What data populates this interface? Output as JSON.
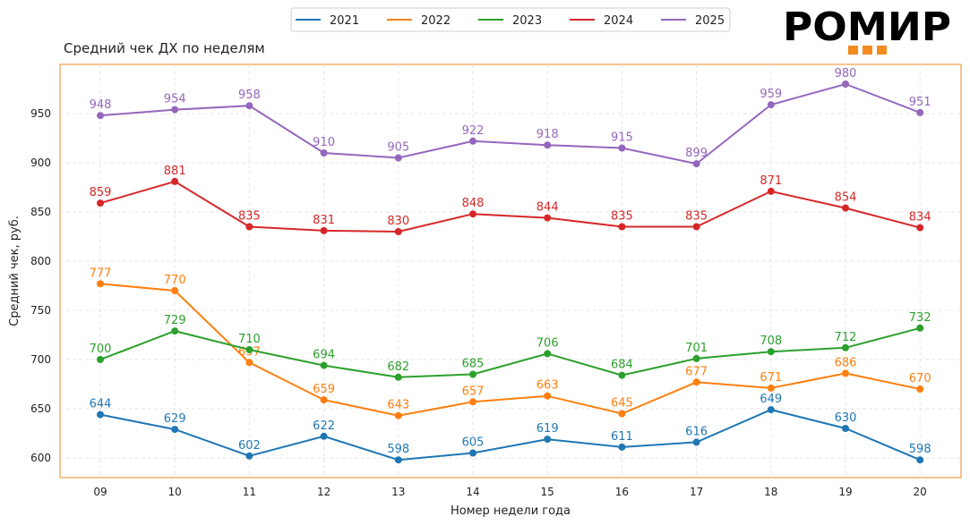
{
  "brand": {
    "name": "РОМИР",
    "accent": "#F28C1E"
  },
  "chart_data": {
    "type": "line",
    "title": "Средний чек ДХ по неделям",
    "xlabel": "Номер недели года",
    "ylabel": "Средний чек, руб.",
    "categories": [
      "09",
      "10",
      "11",
      "12",
      "13",
      "14",
      "15",
      "16",
      "17",
      "18",
      "19",
      "20"
    ],
    "ylim": [
      580,
      1000
    ],
    "yticks": [
      600,
      650,
      700,
      750,
      800,
      850,
      900,
      950
    ],
    "grid": true,
    "legend_position": "top",
    "series": [
      {
        "name": "2021",
        "color": "#1f77b4",
        "values": [
          644,
          629,
          602,
          622,
          598,
          605,
          619,
          611,
          616,
          649,
          630,
          598
        ]
      },
      {
        "name": "2022",
        "color": "#ff7f0e",
        "values": [
          777,
          770,
          697,
          659,
          643,
          657,
          663,
          645,
          677,
          671,
          686,
          670
        ]
      },
      {
        "name": "2023",
        "color": "#2ca02c",
        "values": [
          700,
          729,
          710,
          694,
          682,
          685,
          706,
          684,
          701,
          708,
          712,
          732
        ]
      },
      {
        "name": "2024",
        "color": "#d62728",
        "values": [
          859,
          881,
          835,
          831,
          830,
          848,
          844,
          835,
          835,
          871,
          854,
          834
        ]
      },
      {
        "name": "2025",
        "color": "#9467bd",
        "values": [
          948,
          954,
          958,
          910,
          905,
          922,
          918,
          915,
          899,
          959,
          980,
          951
        ]
      }
    ]
  }
}
